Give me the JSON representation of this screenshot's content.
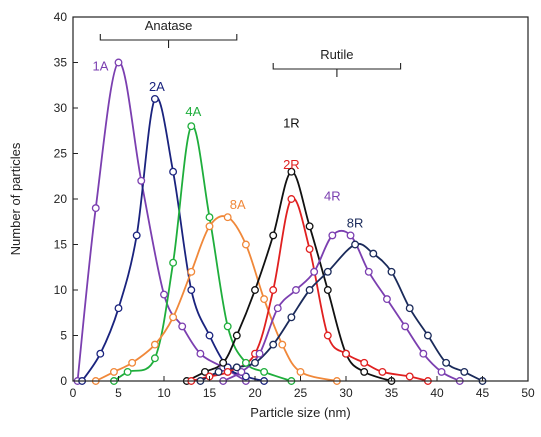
{
  "chart_data": {
    "type": "line",
    "xlabel": "Particle size (nm)",
    "ylabel": "Number of particles",
    "xlim": [
      0,
      50
    ],
    "ylim": [
      0,
      40
    ],
    "xticks": [
      0,
      5,
      10,
      15,
      20,
      25,
      30,
      35,
      40,
      45,
      50
    ],
    "yticks": [
      0,
      5,
      10,
      15,
      20,
      25,
      30,
      35,
      40
    ],
    "grid": false,
    "groups": [
      {
        "name": "Anatase",
        "range": [
          3,
          18
        ]
      },
      {
        "name": "Rutile",
        "range": [
          22,
          36
        ]
      }
    ],
    "series": [
      {
        "name": "1A",
        "color": "#7b3fb0",
        "points": [
          [
            0.5,
            0
          ],
          [
            2.5,
            19
          ],
          [
            5,
            35
          ],
          [
            7.5,
            22
          ],
          [
            10,
            9.5
          ],
          [
            12,
            6
          ],
          [
            14,
            3
          ],
          [
            16.5,
            1.5
          ],
          [
            19,
            0
          ]
        ]
      },
      {
        "name": "2A",
        "color": "#1a237e",
        "points": [
          [
            1,
            0
          ],
          [
            3,
            3
          ],
          [
            5,
            8
          ],
          [
            7,
            16
          ],
          [
            9,
            31
          ],
          [
            11,
            23
          ],
          [
            13,
            10
          ],
          [
            15,
            5
          ],
          [
            17,
            1.5
          ],
          [
            19,
            0.5
          ],
          [
            21,
            0
          ]
        ]
      },
      {
        "name": "4A",
        "color": "#1fae3c",
        "points": [
          [
            4.5,
            0
          ],
          [
            6,
            1
          ],
          [
            9,
            2.5
          ],
          [
            11,
            13
          ],
          [
            13,
            28
          ],
          [
            15,
            18
          ],
          [
            17,
            6
          ],
          [
            19,
            2
          ],
          [
            21,
            1
          ],
          [
            24,
            0
          ]
        ]
      },
      {
        "name": "8A",
        "color": "#f0883a",
        "points": [
          [
            2.5,
            0
          ],
          [
            4.5,
            1
          ],
          [
            6.5,
            2
          ],
          [
            9,
            4
          ],
          [
            11,
            7
          ],
          [
            13,
            12
          ],
          [
            15,
            17
          ],
          [
            17,
            18
          ],
          [
            19,
            15
          ],
          [
            21,
            9
          ],
          [
            23,
            4
          ],
          [
            25,
            1
          ],
          [
            29,
            0
          ]
        ]
      },
      {
        "name": "1R",
        "color": "#111111",
        "points": [
          [
            12.5,
            0
          ],
          [
            14.5,
            1
          ],
          [
            16.5,
            2
          ],
          [
            18,
            5
          ],
          [
            20,
            10
          ],
          [
            22,
            16
          ],
          [
            24,
            23
          ],
          [
            26,
            17
          ],
          [
            28,
            10
          ],
          [
            30,
            3
          ],
          [
            32,
            1
          ],
          [
            35,
            0
          ]
        ]
      },
      {
        "name": "2R",
        "color": "#e02020",
        "points": [
          [
            13,
            0
          ],
          [
            15,
            0.5
          ],
          [
            17,
            1
          ],
          [
            20,
            3
          ],
          [
            22,
            10
          ],
          [
            24,
            20
          ],
          [
            26,
            14.5
          ],
          [
            28,
            5
          ],
          [
            30,
            3
          ],
          [
            32,
            2
          ],
          [
            34,
            1
          ],
          [
            37,
            0.5
          ],
          [
            39,
            0
          ]
        ]
      },
      {
        "name": "4R",
        "color": "#7b3fb0",
        "points": [
          [
            16.5,
            0
          ],
          [
            18.5,
            1
          ],
          [
            20.5,
            3
          ],
          [
            22.5,
            8
          ],
          [
            24.5,
            10
          ],
          [
            26.5,
            12
          ],
          [
            28.5,
            16
          ],
          [
            30.5,
            16
          ],
          [
            32.5,
            12
          ],
          [
            34.5,
            9
          ],
          [
            36.5,
            6
          ],
          [
            38.5,
            3
          ],
          [
            40.5,
            1
          ],
          [
            42.5,
            0
          ]
        ]
      },
      {
        "name": "8R",
        "color": "#1a2a5a",
        "points": [
          [
            14,
            0
          ],
          [
            16,
            1
          ],
          [
            18,
            1.5
          ],
          [
            20,
            2
          ],
          [
            22,
            4
          ],
          [
            24,
            7
          ],
          [
            26,
            10
          ],
          [
            28,
            12
          ],
          [
            31,
            15
          ],
          [
            33,
            14
          ],
          [
            35,
            12
          ],
          [
            37,
            8
          ],
          [
            39,
            5
          ],
          [
            41,
            2
          ],
          [
            43,
            1
          ],
          [
            45,
            0
          ]
        ]
      }
    ],
    "label_positions": "near each peak"
  }
}
